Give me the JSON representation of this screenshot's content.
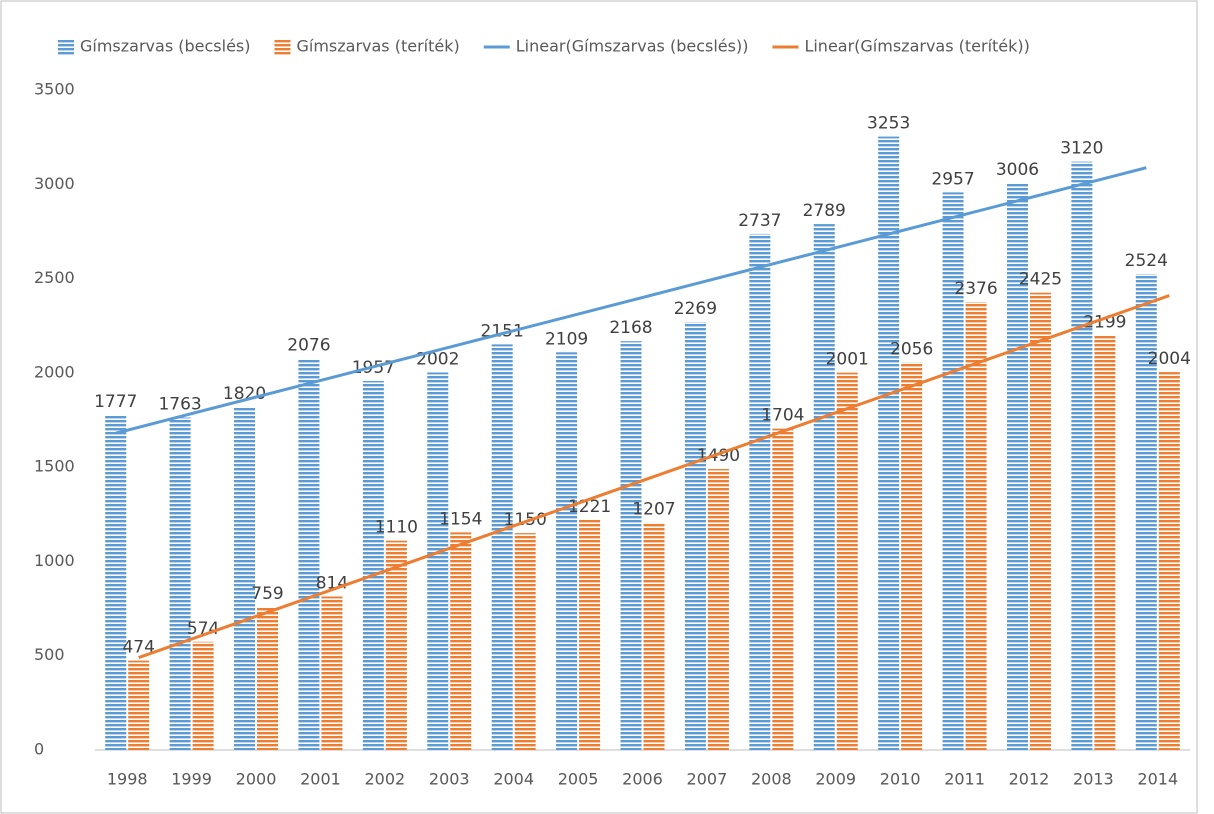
{
  "chart_data": {
    "type": "bar",
    "categories": [
      "1998",
      "1999",
      "2000",
      "2001",
      "2002",
      "2003",
      "2004",
      "2005",
      "2006",
      "2007",
      "2008",
      "2009",
      "2010",
      "2011",
      "2012",
      "2013",
      "2014"
    ],
    "series": [
      {
        "name": "Gímszarvas (becslés)",
        "color": "#5b9bd5",
        "values": [
          1777,
          1763,
          1820,
          2076,
          1957,
          2002,
          2151,
          2109,
          2168,
          2269,
          2737,
          2789,
          3253,
          2957,
          3006,
          3120,
          2524
        ]
      },
      {
        "name": "Gímszarvas (teríték)",
        "color": "#ed7d31",
        "values": [
          474,
          574,
          759,
          814,
          1110,
          1154,
          1150,
          1221,
          1207,
          1490,
          1704,
          2001,
          2056,
          2376,
          2425,
          2199,
          2004
        ]
      }
    ],
    "trendlines": [
      {
        "name": "Linear(Gímszarvas (becslés))",
        "color": "#5b9bd5",
        "values": [
          1680,
          1768,
          1856,
          1944,
          2032,
          2120,
          2208,
          2296,
          2384,
          2472,
          2560,
          2648,
          2736,
          2824,
          2912,
          3000,
          3088
        ]
      },
      {
        "name": "Linear(Gímszarvas (teríték))",
        "color": "#ed7d31",
        "values": [
          490,
          610,
          730,
          850,
          970,
          1090,
          1210,
          1330,
          1450,
          1570,
          1690,
          1810,
          1930,
          2050,
          2170,
          2290,
          2410
        ]
      }
    ],
    "ylim": [
      0,
      3500
    ],
    "yticks": [
      0,
      500,
      1000,
      1500,
      2000,
      2500,
      3000,
      3500
    ],
    "grid": false
  }
}
